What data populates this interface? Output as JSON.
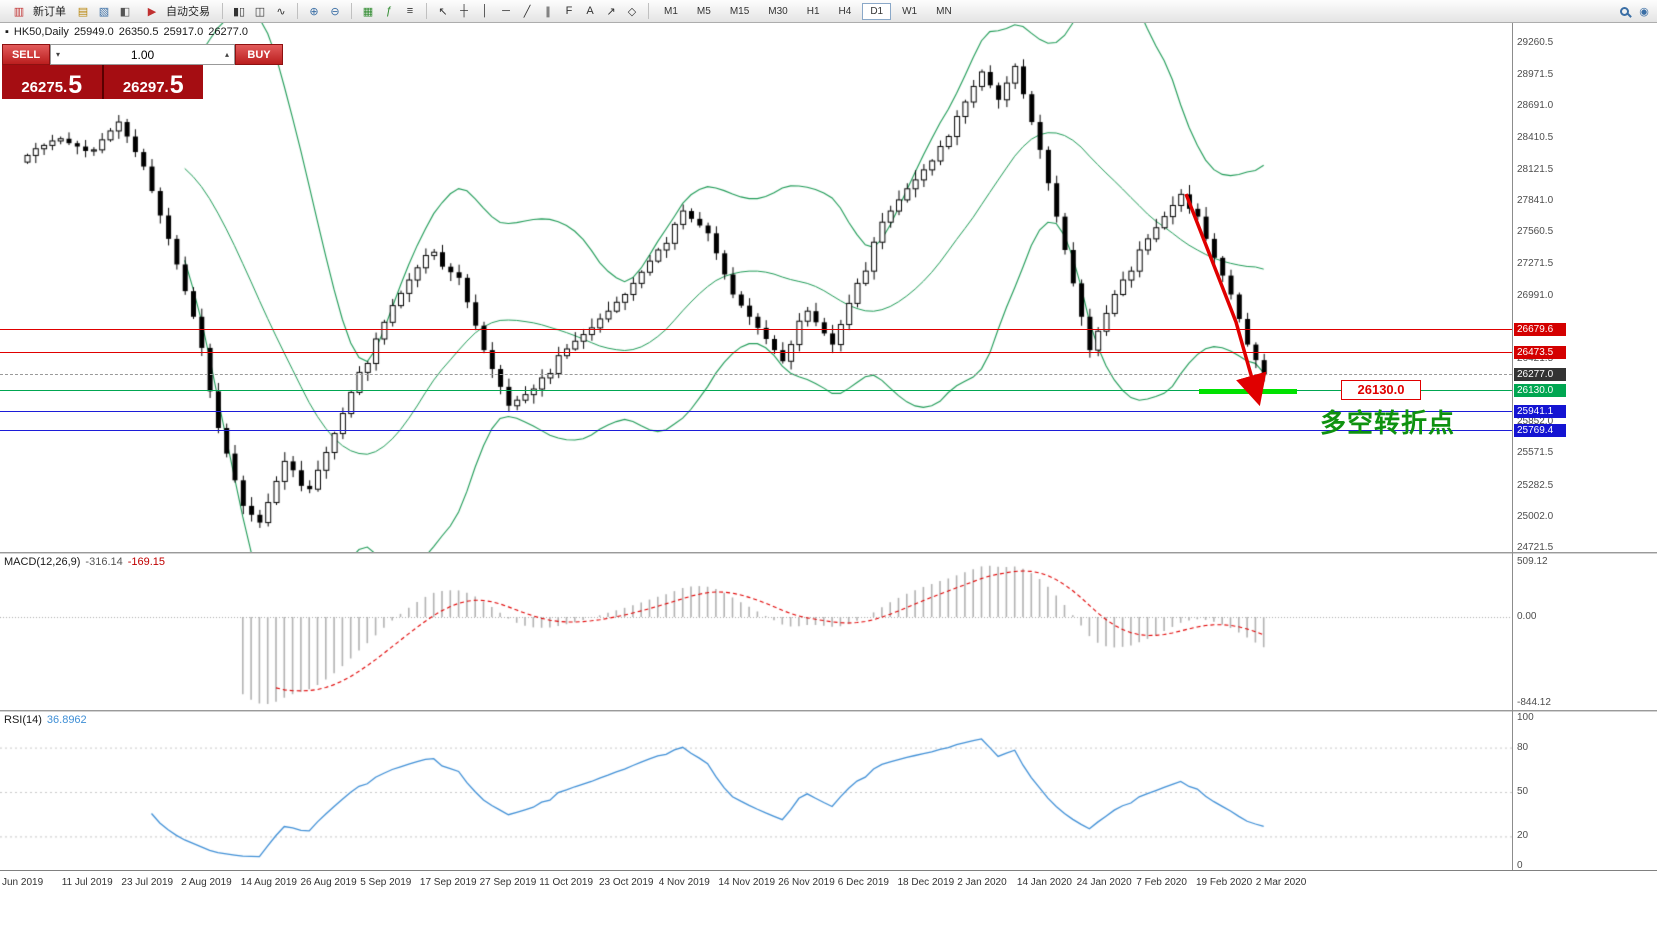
{
  "toolbar": {
    "new_order_label": "新订单",
    "autotrading_label": "自动交易",
    "timeframes": [
      "M1",
      "M5",
      "M15",
      "M30",
      "H1",
      "H4",
      "D1",
      "W1",
      "MN"
    ],
    "active_timeframe": "D1"
  },
  "icons": {
    "bullet": "▪",
    "new_order": "▥",
    "new_chart": "▤",
    "profiles": "▧",
    "data_window": "◧",
    "autotrading": "▶",
    "bar_chart": "▮▯",
    "candlestick": "◫",
    "line_chart": "∿",
    "zoom_in": "⊕",
    "zoom_out": "⊖",
    "tile_windows": "▦",
    "indicators": "ƒ",
    "templates": "≡",
    "cursor": "↖",
    "crosshair": "┼",
    "vertical_line": "│",
    "horizontal_line": "─",
    "trendline": "╱",
    "channel": "∥",
    "fibonacci": "F",
    "text": "A",
    "arrows": "↗",
    "shapes": "◇",
    "spin_up": "▴",
    "spin_down": "▾",
    "community": "◉"
  },
  "symbol_header": {
    "symbol": "HK50,Daily",
    "open": "25949.0",
    "high": "26350.5",
    "low": "25917.0",
    "close": "26277.0"
  },
  "trade_panel": {
    "sell_label": "SELL",
    "buy_label": "BUY",
    "volume": "1.00",
    "sell_price_main": "26275.",
    "sell_price_big": "5",
    "buy_price_main": "26297.",
    "buy_price_big": "5"
  },
  "price_axis": {
    "labels": [
      29260.5,
      28971.5,
      28691.0,
      28410.5,
      28121.5,
      27841.0,
      27560.5,
      27271.5,
      26991.0,
      26421.5,
      25852.0,
      25571.5,
      25282.5,
      25002.0,
      24721.5
    ]
  },
  "price_badges": [
    {
      "price": 26679.6,
      "text": "26679.6",
      "type": "red"
    },
    {
      "price": 26473.5,
      "text": "26473.5",
      "type": "red"
    },
    {
      "price": 26277.0,
      "text": "26277.0",
      "type": "dark"
    },
    {
      "price": 26130.0,
      "text": "26130.0",
      "type": "green"
    },
    {
      "price": 25941.1,
      "text": "25941.1",
      "type": "blue"
    },
    {
      "price": 25769.4,
      "text": "25769.4",
      "type": "blue"
    }
  ],
  "levels": [
    {
      "price": 26679.6,
      "color": "#e00000",
      "style": "solid"
    },
    {
      "price": 26473.5,
      "color": "#e00000",
      "style": "solid"
    },
    {
      "price": 26277.0,
      "color": "#9a9a9a",
      "style": "dashed"
    },
    {
      "price": 26130.0,
      "color": "#00a651",
      "style": "solid"
    },
    {
      "price": 25941.1,
      "color": "#1c1cd8",
      "style": "solid"
    },
    {
      "price": 25769.4,
      "color": "#1c1cd8",
      "style": "solid"
    }
  ],
  "annotations": {
    "price_label": "26130.0",
    "turning_point_text": "多空转折点"
  },
  "chart_data": {
    "type": "candlestick",
    "symbol": "HK50",
    "timeframe": "Daily",
    "ohlc_current": {
      "open": 25949.0,
      "high": 26350.5,
      "low": 25917.0,
      "close": 26277.0
    },
    "price_range": {
      "top": 29260.5,
      "bottom": 24721.5
    },
    "x_labels": [
      "Jun 2019",
      "11 Jul 2019",
      "23 Jul 2019",
      "2 Aug 2019",
      "14 Aug 2019",
      "26 Aug 2019",
      "5 Sep 2019",
      "17 Sep 2019",
      "27 Sep 2019",
      "11 Oct 2019",
      "23 Oct 2019",
      "4 Nov 2019",
      "14 Nov 2019",
      "26 Nov 2019",
      "6 Dec 2019",
      "18 Dec 2019",
      "2 Jan 2020",
      "14 Jan 2020",
      "24 Jan 2020",
      "7 Feb 2020",
      "19 Feb 2020",
      "2 Mar 2020"
    ],
    "closes": [
      28250,
      28310,
      28340,
      28380,
      28400,
      28360,
      28330,
      28290,
      28300,
      28390,
      28470,
      28550,
      28420,
      28280,
      28150,
      27930,
      27710,
      27500,
      27270,
      27030,
      26800,
      26520,
      26130,
      25800,
      25570,
      25330,
      25100,
      25020,
      24950,
      25130,
      25320,
      25500,
      25420,
      25280,
      25250,
      25420,
      25580,
      25750,
      25930,
      26120,
      26300,
      26380,
      26600,
      26750,
      26900,
      27010,
      27130,
      27240,
      27350,
      27380,
      27250,
      27200,
      27150,
      26930,
      26720,
      26500,
      26330,
      26170,
      26000,
      26050,
      26100,
      26150,
      26250,
      26290,
      26450,
      26510,
      26580,
      26640,
      26700,
      26780,
      26850,
      26930,
      27000,
      27100,
      27200,
      27300,
      27400,
      27460,
      27630,
      27750,
      27680,
      27620,
      27550,
      27370,
      27180,
      27000,
      26900,
      26800,
      26700,
      26600,
      26500,
      26400,
      26550,
      26760,
      26850,
      26750,
      26650,
      26550,
      26730,
      26920,
      27100,
      27210,
      27470,
      27650,
      27750,
      27850,
      27950,
      28030,
      28120,
      28200,
      28330,
      28420,
      28600,
      28730,
      28870,
      29000,
      28880,
      28750,
      28900,
      29050,
      28800,
      28550,
      28300,
      28000,
      27700,
      27400,
      27100,
      26800,
      26500,
      26670,
      26830,
      27000,
      27130,
      27210,
      27400,
      27500,
      27600,
      27700,
      27800,
      27900,
      27770,
      27700,
      27500,
      27330,
      27170,
      27000,
      26780,
      26550,
      26410,
      26277
    ],
    "bollinger": {
      "period": 20,
      "deviation": 2,
      "color": "#1d9a55"
    }
  },
  "macd": {
    "label": "MACD(12,26,9)",
    "main_value": "-316.14",
    "signal_value": "-169.15",
    "params": {
      "fast": 12,
      "slow": 26,
      "signal": 9
    },
    "axis_labels": [
      "509.12",
      "0.00",
      "-844.12"
    ],
    "colors": {
      "histogram": "#b2b2b2",
      "signal": "#e00000"
    }
  },
  "rsi": {
    "label": "RSI(14)",
    "value": "36.8962",
    "period": 14,
    "levels": [
      100,
      80,
      50,
      20,
      0
    ],
    "color": "#3f8fd6"
  }
}
